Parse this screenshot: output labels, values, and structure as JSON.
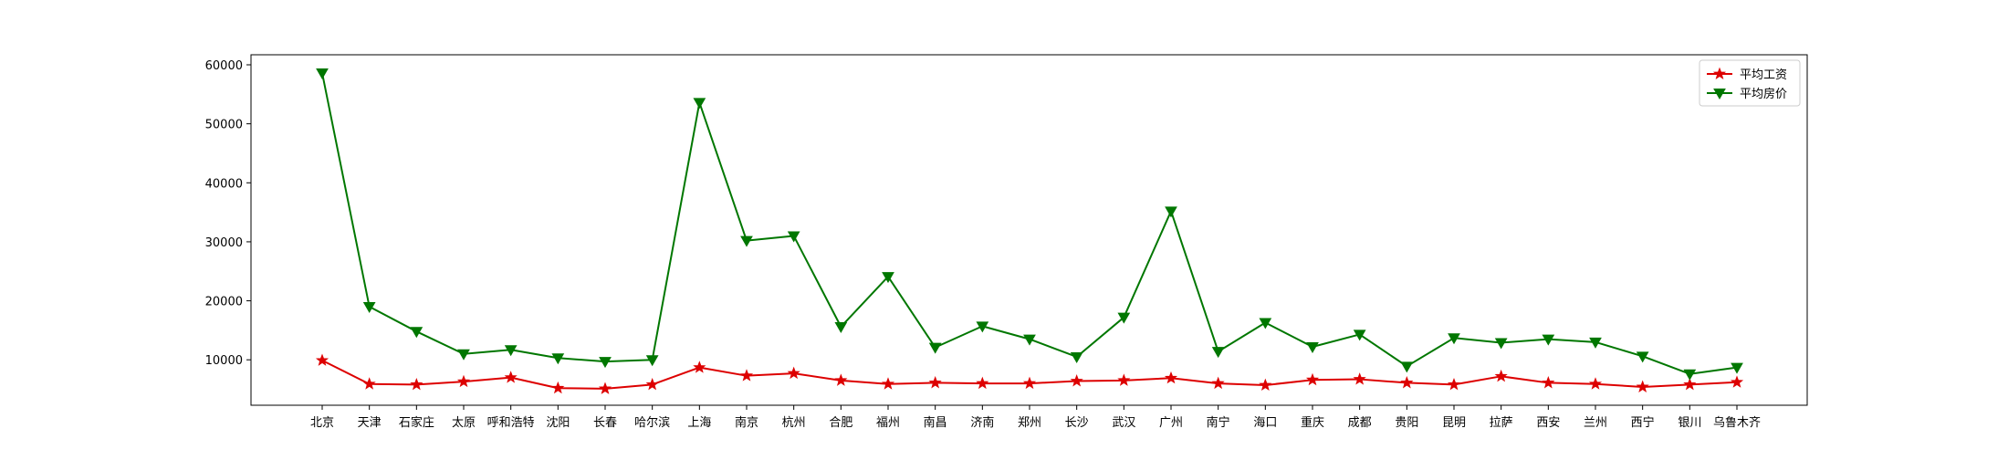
{
  "chart_data": {
    "type": "line",
    "categories": [
      "北京",
      "天津",
      "石家庄",
      "太原",
      "呼和浩特",
      "沈阳",
      "长春",
      "哈尔滨",
      "上海",
      "南京",
      "杭州",
      "合肥",
      "福州",
      "南昌",
      "济南",
      "郑州",
      "长沙",
      "武汉",
      "广州",
      "南宁",
      "海口",
      "重庆",
      "成都",
      "贵阳",
      "昆明",
      "拉萨",
      "西安",
      "兰州",
      "西宁",
      "银川",
      "乌鲁木齐"
    ],
    "series": [
      {
        "name": "平均工资",
        "color": "#dd0000",
        "marker": "star",
        "values": [
          9900,
          5900,
          5800,
          6300,
          7000,
          5200,
          5100,
          5800,
          8700,
          7300,
          7700,
          6500,
          5900,
          6100,
          6000,
          6000,
          6400,
          6500,
          6900,
          6000,
          5700,
          6600,
          6700,
          6100,
          5800,
          7200,
          6100,
          5900,
          5400,
          5800,
          6200
        ]
      },
      {
        "name": "平均房价",
        "color": "#007700",
        "marker": "triangle-down",
        "values": [
          58600,
          19000,
          14800,
          11000,
          11700,
          10300,
          9700,
          10000,
          53600,
          30200,
          31000,
          15600,
          24100,
          12100,
          15700,
          13500,
          10500,
          17200,
          35200,
          11400,
          16300,
          12200,
          14300,
          8900,
          13700,
          12900,
          13500,
          13000,
          10600,
          7600,
          8700
        ]
      }
    ],
    "yticks": [
      10000,
      20000,
      30000,
      40000,
      50000,
      60000
    ],
    "ylim": [
      2300,
      61700
    ],
    "legend_position": "top-right",
    "grid": false
  }
}
